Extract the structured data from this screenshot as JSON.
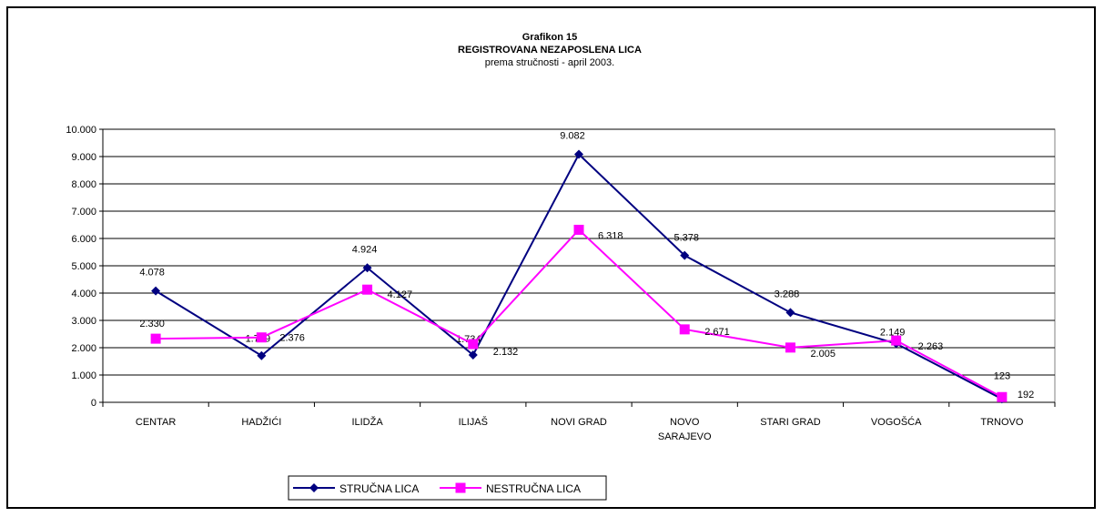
{
  "chart_data": {
    "type": "line",
    "title": "Grafikon 15",
    "subtitle": "REGISTROVANA NEZAPOSLENA LICA",
    "subtitle2": "prema stručnosti - april  2003.",
    "categories": [
      [
        "CENTAR"
      ],
      [
        "HADŽIĆI"
      ],
      [
        "ILIDŽA"
      ],
      [
        "ILIJAŠ"
      ],
      [
        "NOVI GRAD"
      ],
      [
        "NOVO",
        "SARAJEVO"
      ],
      [
        "STARI GRAD"
      ],
      [
        "VOGOŠĆA"
      ],
      [
        "TRNOVO"
      ]
    ],
    "ylim": [
      0,
      10000
    ],
    "yticks": [
      {
        "value": 0,
        "label": "0"
      },
      {
        "value": 1000,
        "label": "1.000"
      },
      {
        "value": 2000,
        "label": "2.000"
      },
      {
        "value": 3000,
        "label": "3.000"
      },
      {
        "value": 4000,
        "label": "4.000"
      },
      {
        "value": 5000,
        "label": "5.000"
      },
      {
        "value": 6000,
        "label": "6.000"
      },
      {
        "value": 7000,
        "label": "7.000"
      },
      {
        "value": 8000,
        "label": "8.000"
      },
      {
        "value": 9000,
        "label": "9.000"
      },
      {
        "value": 10000,
        "label": "10.000"
      }
    ],
    "grid": true,
    "legend_position": "bottom-left",
    "series": [
      {
        "name": "STRUČNA LICA",
        "color": "#000080",
        "marker": "diamond",
        "values": [
          4078,
          1709,
          4924,
          1734,
          9082,
          5378,
          3288,
          2149,
          123
        ],
        "labels": [
          "4.078",
          "1.709",
          "4.924",
          "1.734",
          "9.082",
          "5.378",
          "3.288",
          "2.149",
          "123"
        ]
      },
      {
        "name": "NESTRUČNA LICA",
        "color": "#ff00ff",
        "marker": "square",
        "values": [
          2330,
          2376,
          4127,
          2132,
          6318,
          2671,
          2005,
          2263,
          192
        ],
        "labels": [
          "2.330",
          "2.376",
          "4.127",
          "2.132",
          "6.318",
          "2.671",
          "2.005",
          "2.263",
          "192"
        ]
      }
    ]
  }
}
